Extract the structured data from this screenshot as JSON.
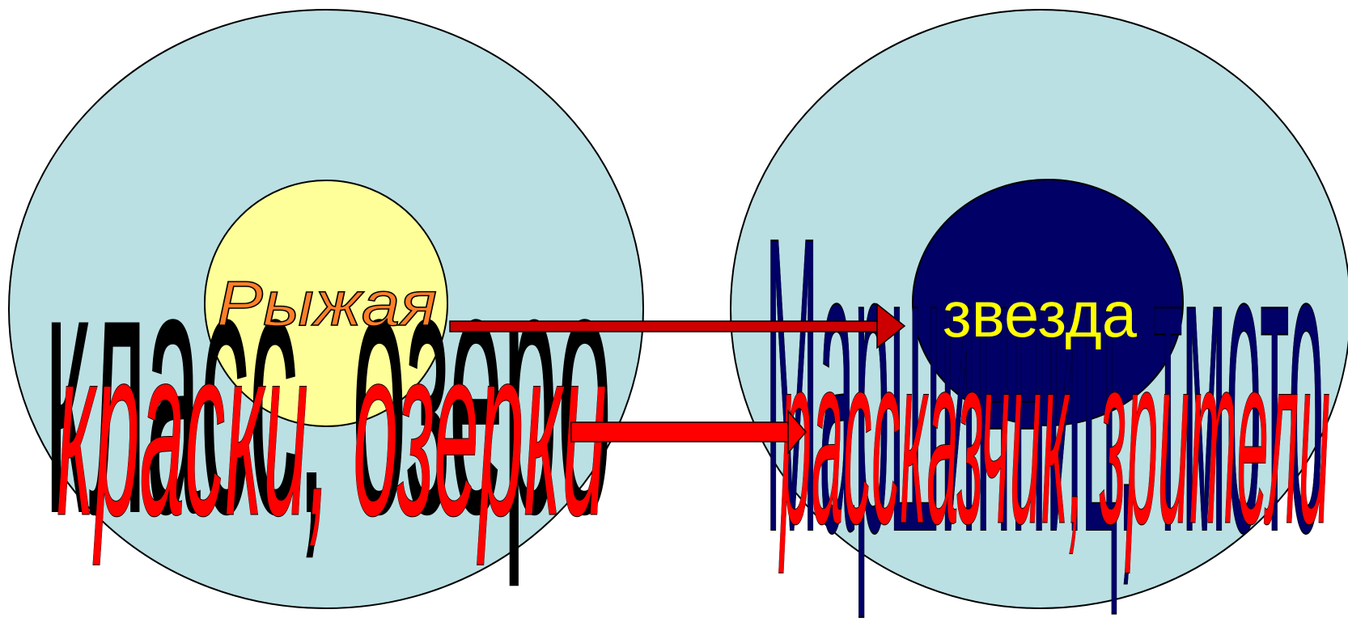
{
  "colors": {
    "outer_circle_fill": "#bbe0e3",
    "left_inner_fill": "#ffff99",
    "right_inner_fill": "#000066",
    "black_text": "#000000",
    "navy_text": "#000066",
    "red_text": "#ff0000",
    "orange_text": "#ff7f27",
    "yellow_text": "#ffff00",
    "arrow_red": "#cc0000"
  },
  "left_cluster": {
    "inner_label": "Рыжая",
    "big_word": "класс, озеро",
    "red_word": "краски, озерки"
  },
  "right_cluster": {
    "inner_label": "звезда",
    "big_word": "Маршинниц, тмото",
    "red_word": "рассказчик, зрители"
  }
}
